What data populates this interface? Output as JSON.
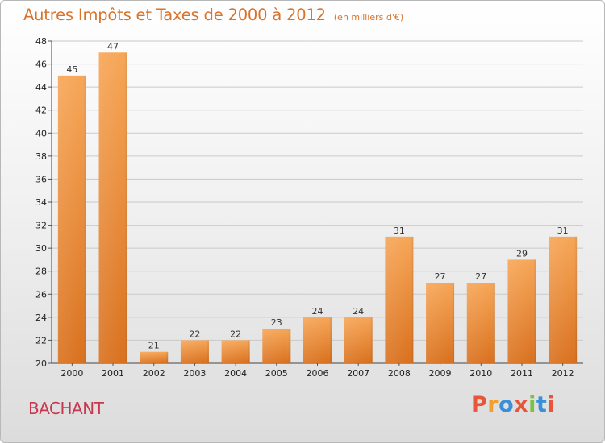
{
  "page": {
    "title": "Autres Impôts et Taxes de 2000 à 2012",
    "unit": "(en milliers d'€)",
    "commune": "BACHANT",
    "logo": "Proxiti"
  },
  "colors": {
    "title": "#d9732b",
    "commune": "#c8374e",
    "bar_top": "#f7a657",
    "bar_bottom": "#d9711e",
    "logo": [
      "#e8553a",
      "#f0a030",
      "#3a8fd9",
      "#e8553a",
      "#7cc242",
      "#3a8fd9",
      "#e8553a"
    ]
  },
  "chart_data": {
    "type": "bar",
    "title": "Autres Impôts et Taxes de 2000 à 2012",
    "subtitle": "(en milliers d'€)",
    "categories": [
      "2000",
      "2001",
      "2002",
      "2003",
      "2004",
      "2005",
      "2006",
      "2007",
      "2008",
      "2009",
      "2010",
      "2011",
      "2012"
    ],
    "values": [
      45,
      47,
      21,
      22,
      22,
      23,
      24,
      24,
      31,
      27,
      27,
      29,
      31
    ],
    "data_labels": [
      "45",
      "47",
      "21",
      "22",
      "22",
      "23",
      "24",
      "24",
      "31",
      "27",
      "27",
      "29",
      "31"
    ],
    "ylim": [
      20,
      48
    ],
    "yticks": [
      20,
      22,
      24,
      26,
      28,
      30,
      32,
      34,
      36,
      38,
      40,
      42,
      44,
      46,
      48
    ],
    "ytick_labels": [
      "20",
      "22",
      "24",
      "26",
      "28",
      "30",
      "32",
      "34",
      "36",
      "38",
      "40",
      "42",
      "44",
      "46",
      "48"
    ],
    "grid": true,
    "legend": "none"
  }
}
